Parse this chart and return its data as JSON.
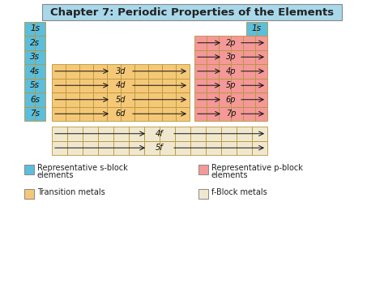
{
  "title": "Chapter 7: Periodic Properties of the Elements",
  "title_bg": "#a8d8ea",
  "title_border": "#888888",
  "title_fontsize": 9.5,
  "s_block_color": "#5bbedd",
  "p_block_color": "#f49898",
  "d_block_color": "#f5c878",
  "f_block_color": "#f0e8ce",
  "grid_color": "#b8963c",
  "white": "#ffffff",
  "s_rows": [
    "1s",
    "2s",
    "3s",
    "4s",
    "5s",
    "6s",
    "7s"
  ],
  "p_labels": [
    "2p",
    "3p",
    "4p",
    "5p",
    "6p",
    "7p"
  ],
  "d_labels": [
    "3d",
    "4d",
    "5d",
    "6d"
  ],
  "f_labels": [
    "4f",
    "5f"
  ],
  "legend_items_left": [
    {
      "label1": "Representative s-block",
      "label2": "elements",
      "color": "#5bbedd"
    },
    {
      "label1": "Transition metals",
      "label2": "",
      "color": "#f5c878"
    }
  ],
  "legend_items_right": [
    {
      "label1": "Representative p-block",
      "label2": "elements",
      "color": "#f49898"
    },
    {
      "label1": "f-Block metals",
      "label2": "",
      "color": "#f0e8ce"
    }
  ]
}
